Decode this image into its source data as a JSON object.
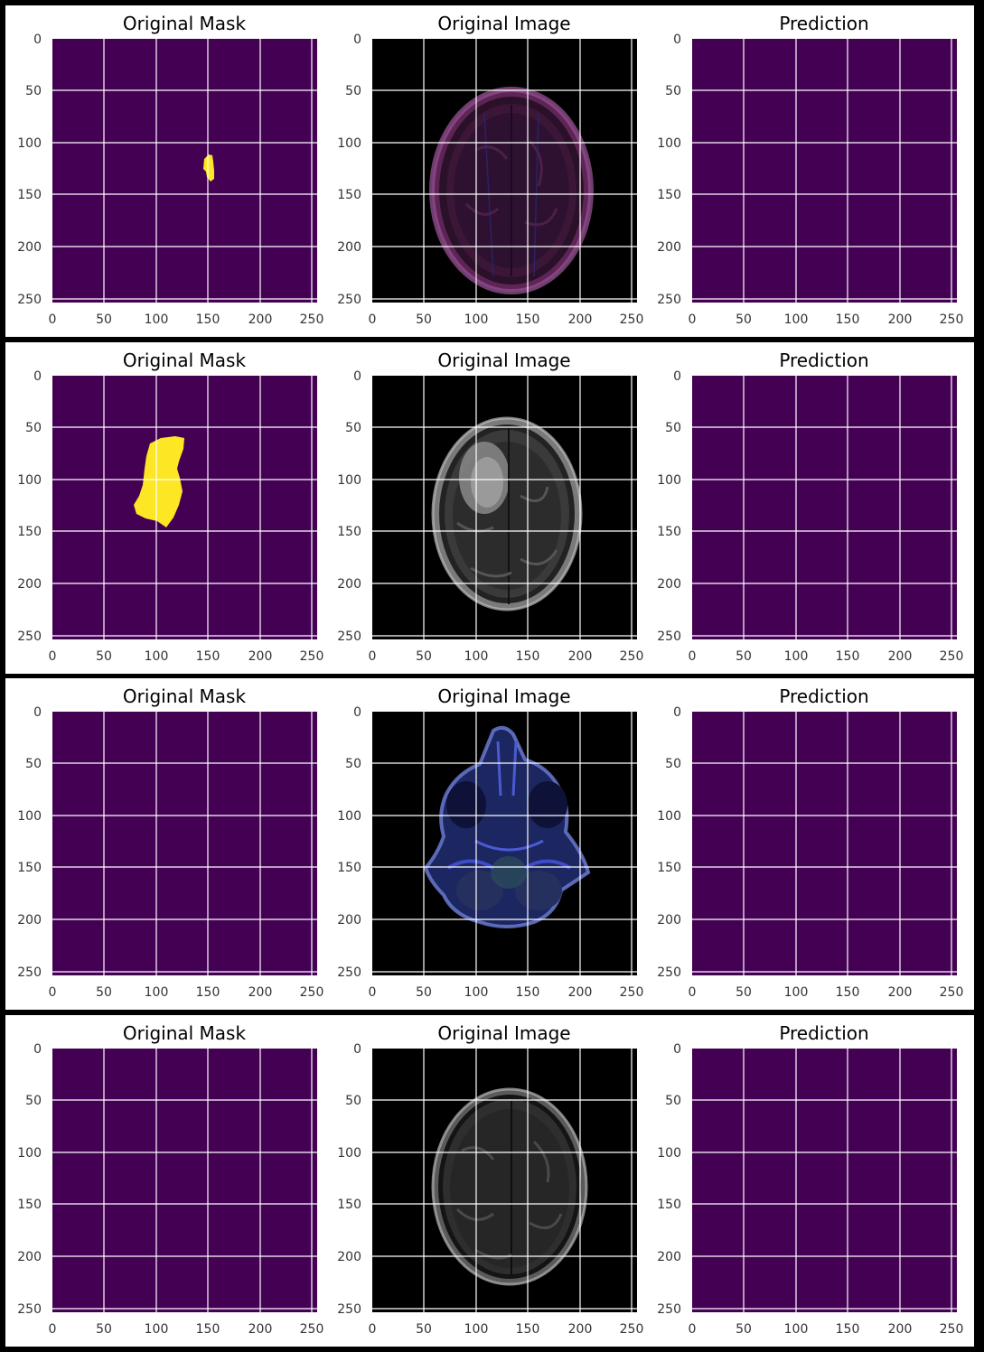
{
  "figure": {
    "colors": {
      "background": "#000000",
      "panel": "#ffffff",
      "mask_background": "#440154",
      "mask_foreground": "#fde725",
      "grid": "#ffffff",
      "tick_text": "#333333"
    },
    "axis_ticks": {
      "y": [
        "0",
        "50",
        "100",
        "150",
        "200",
        "250"
      ],
      "x": [
        "0",
        "50",
        "100",
        "150",
        "200",
        "250"
      ]
    },
    "rows": [
      {
        "titles": {
          "mask": "Original Mask",
          "image": "Original Image",
          "prediction": "Prediction"
        },
        "mri_style": "purple-tint"
      },
      {
        "titles": {
          "mask": "Original Mask",
          "image": "Original Image",
          "prediction": "Prediction"
        },
        "mri_style": "grayscale"
      },
      {
        "titles": {
          "mask": "Original Mask",
          "image": "Original Image",
          "prediction": "Prediction"
        },
        "mri_style": "blue-tint"
      },
      {
        "titles": {
          "mask": "Original Mask",
          "image": "Original Image",
          "prediction": "Prediction"
        },
        "mri_style": "grayscale"
      }
    ]
  }
}
